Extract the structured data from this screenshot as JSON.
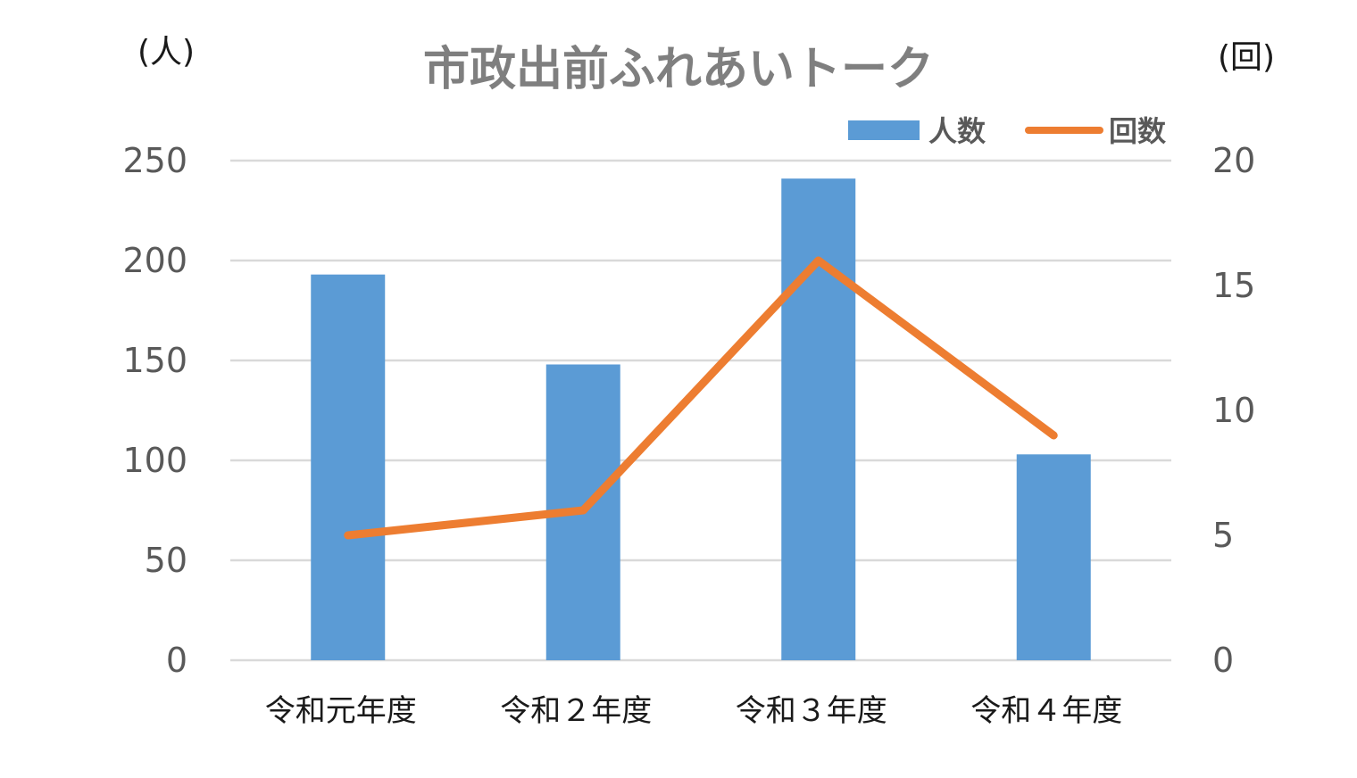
{
  "chart_data": {
    "type": "bar",
    "title": "市政出前ふれあいトーク",
    "categories": [
      "令和元年度",
      "令和２年度",
      "令和３年度",
      "令和４年度"
    ],
    "series": [
      {
        "name": "人数",
        "type": "bar",
        "axis": "left",
        "color": "#5b9bd5",
        "values": [
          193,
          148,
          241,
          103
        ]
      },
      {
        "name": "回数",
        "type": "line",
        "axis": "right",
        "color": "#ed7d31",
        "values": [
          5,
          6,
          16,
          9
        ]
      }
    ],
    "y_left": {
      "unit_label": "(人)",
      "ylim": [
        0,
        250
      ],
      "ticks": [
        "0",
        "50",
        "100",
        "150",
        "200",
        "250"
      ]
    },
    "y_right": {
      "unit_label": "(回)",
      "ylim": [
        0,
        20
      ],
      "ticks": [
        "0",
        "5",
        "10",
        "15",
        "20"
      ]
    },
    "grid": true,
    "legend_position": "top-right"
  }
}
